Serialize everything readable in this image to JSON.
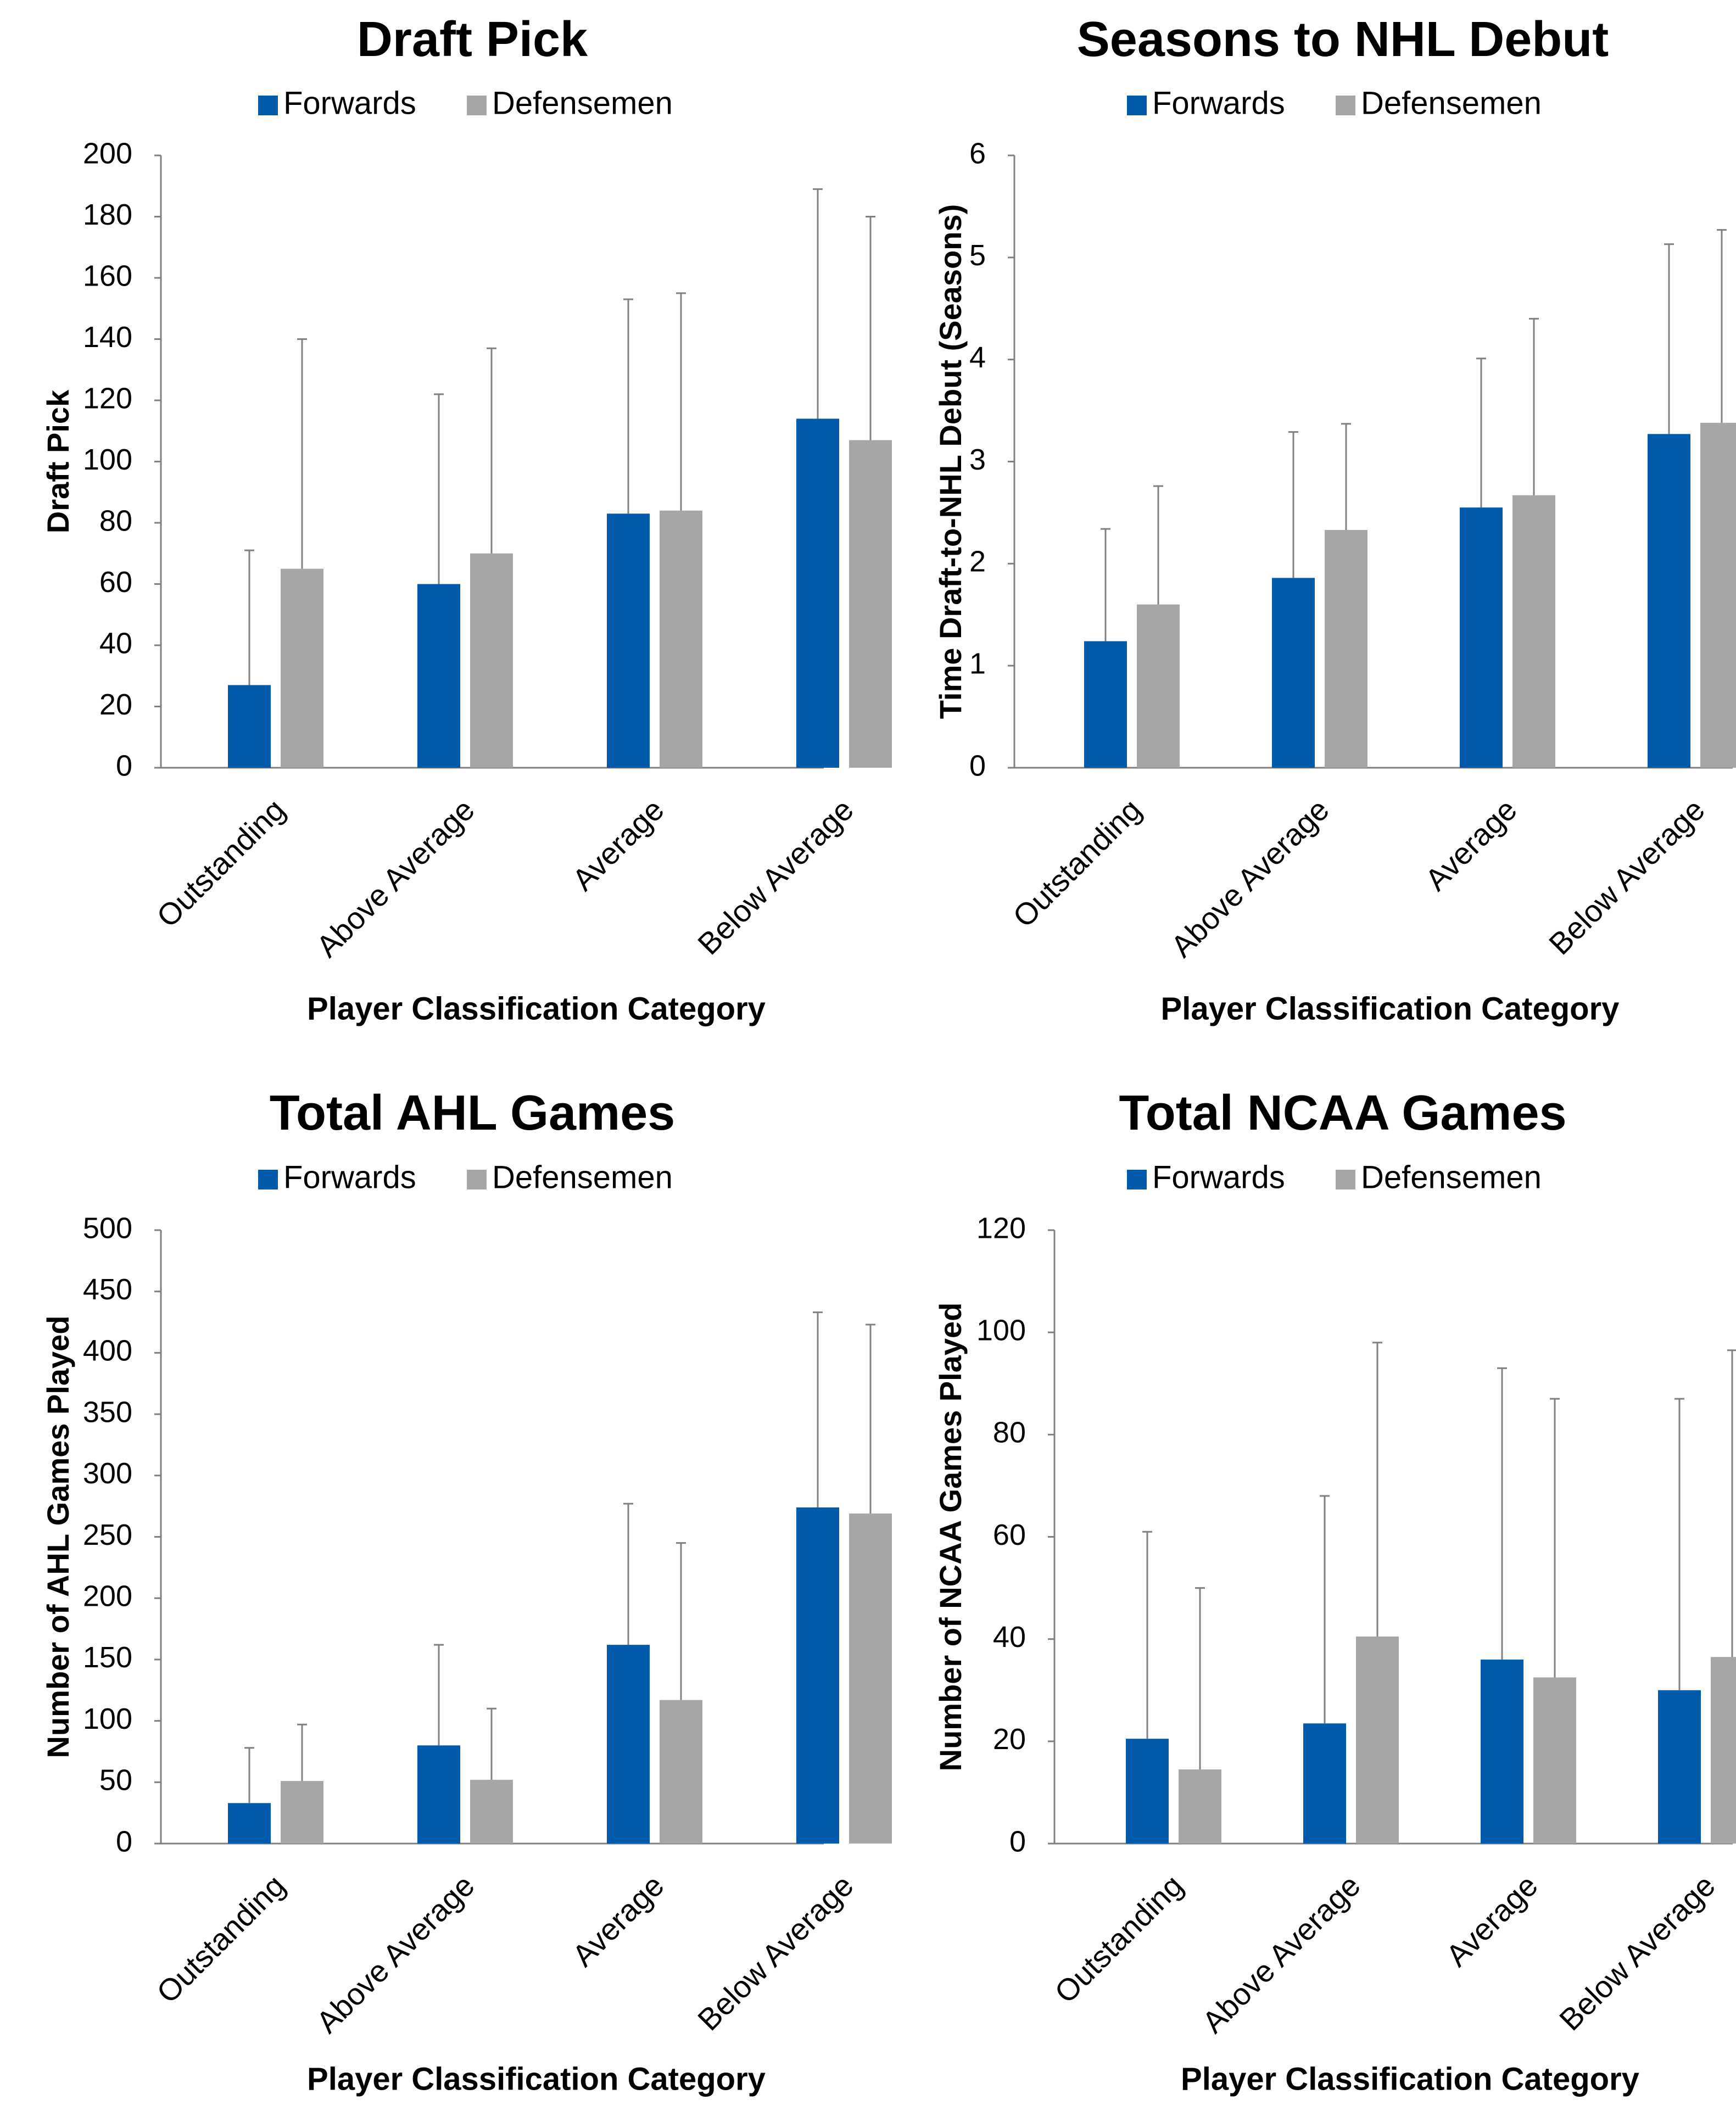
{
  "chart_data": [
    {
      "type": "bar",
      "title": "Draft Pick",
      "xlabel": "Player Classification Category",
      "ylabel": "Draft Pick",
      "ylim": [
        0,
        200
      ],
      "yticks": [
        0,
        20,
        40,
        60,
        80,
        100,
        120,
        140,
        160,
        180,
        200
      ],
      "categories": [
        "Outstanding",
        "Above Average",
        "Average",
        "Below Average"
      ],
      "legend_position": "top",
      "series": [
        {
          "name": "Forwards",
          "color": "#005BAC",
          "values": [
            27,
            60,
            83,
            114
          ],
          "error_upper": [
            71,
            122,
            153,
            189
          ]
        },
        {
          "name": "Defensemen",
          "color": "#A6A6A6",
          "values": [
            65,
            70,
            84,
            107
          ],
          "error_upper": [
            140,
            137,
            155,
            180
          ]
        }
      ]
    },
    {
      "type": "bar",
      "title": "Seasons to NHL Debut",
      "xlabel": "Player Classification Category",
      "ylabel": "Time Draft-to-NHL Debut (Seasons)",
      "ylim": [
        0,
        6
      ],
      "yticks": [
        0,
        1,
        2,
        3,
        4,
        5,
        6
      ],
      "categories": [
        "Outstanding",
        "Above Average",
        "Average",
        "Below Average"
      ],
      "legend_position": "top",
      "series": [
        {
          "name": "Forwards",
          "color": "#005BAC",
          "values": [
            1.24,
            1.86,
            2.55,
            3.27
          ],
          "error_upper": [
            2.34,
            3.29,
            4.01,
            5.13
          ]
        },
        {
          "name": "Defensemen",
          "color": "#A6A6A6",
          "values": [
            1.6,
            2.33,
            2.67,
            3.38
          ],
          "error_upper": [
            2.76,
            3.37,
            4.4,
            5.27
          ]
        }
      ]
    },
    {
      "type": "bar",
      "title": "Total AHL Games",
      "xlabel": "Player Classification Category",
      "ylabel": "Number of AHL Games Played",
      "ylim": [
        0,
        500
      ],
      "yticks": [
        0,
        50,
        100,
        150,
        200,
        250,
        300,
        350,
        400,
        450,
        500
      ],
      "categories": [
        "Outstanding",
        "Above Average",
        "Average",
        "Below Average"
      ],
      "legend_position": "top",
      "series": [
        {
          "name": "Forwards",
          "color": "#005BAC",
          "values": [
            33,
            80,
            162,
            274
          ],
          "error_upper": [
            78,
            162,
            277,
            433
          ]
        },
        {
          "name": "Defensemen",
          "color": "#A6A6A6",
          "values": [
            51,
            52,
            117,
            269
          ],
          "error_upper": [
            97,
            110,
            245,
            423
          ]
        }
      ]
    },
    {
      "type": "bar",
      "title": "Total NCAA Games",
      "xlabel": "Player Classification Category",
      "ylabel": "Number of NCAA Games Played",
      "ylim": [
        0,
        120
      ],
      "yticks": [
        0,
        20,
        40,
        60,
        80,
        100,
        120
      ],
      "categories": [
        "Outstanding",
        "Above Average",
        "Average",
        "Below Average"
      ],
      "legend_position": "top",
      "series": [
        {
          "name": "Forwards",
          "color": "#005BAC",
          "values": [
            20.5,
            23.5,
            36,
            30
          ],
          "error_upper": [
            61,
            68,
            93,
            87
          ]
        },
        {
          "name": "Defensemen",
          "color": "#A6A6A6",
          "values": [
            14.5,
            40.5,
            32.5,
            36.5
          ],
          "error_upper": [
            50,
            98,
            87,
            96.5
          ]
        }
      ]
    }
  ]
}
